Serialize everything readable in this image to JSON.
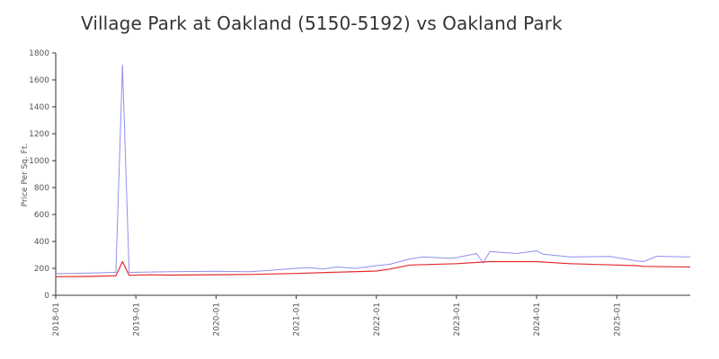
{
  "chart_data": {
    "type": "line",
    "title": "Village Park at Oakland (5150-5192) vs Oakland Park",
    "xlabel": "",
    "ylabel": "Price Per Sq. Ft.",
    "ylim": [
      0,
      1800
    ],
    "xlim": [
      "2018-01",
      "2025-12"
    ],
    "y_ticks": [
      "0",
      "200",
      "400",
      "600",
      "800",
      "1000",
      "1200",
      "1400",
      "1600",
      "1800"
    ],
    "x_ticks": [
      "2018-01",
      "2019-01",
      "2020-01",
      "2021-01",
      "2022-01",
      "2023-01",
      "2024-01",
      "2025-01"
    ],
    "grid": false,
    "legend": "none",
    "colors": {
      "blue_series": "#8f90ee",
      "red_series": "#e32b2b",
      "axis": "#333333"
    },
    "series": [
      {
        "color": "#8f90ee",
        "x": [
          "2018-01",
          "2018-06",
          "2018-10",
          "2018-11",
          "2018-12",
          "2019-06",
          "2020-01",
          "2020-06",
          "2020-09",
          "2021-01",
          "2021-03",
          "2021-05",
          "2021-07",
          "2021-10",
          "2022-01",
          "2022-03",
          "2022-06",
          "2022-08",
          "2022-12",
          "2023-01",
          "2023-04",
          "2023-05",
          "2023-06",
          "2023-10",
          "2024-01",
          "2024-02",
          "2024-06",
          "2024-12",
          "2025-01",
          "2025-04",
          "2025-05",
          "2025-07",
          "2025-12"
        ],
        "values": [
          160,
          165,
          170,
          1710,
          170,
          175,
          178,
          175,
          185,
          200,
          205,
          195,
          210,
          200,
          220,
          230,
          270,
          285,
          275,
          280,
          310,
          240,
          325,
          310,
          330,
          305,
          285,
          288,
          280,
          255,
          250,
          290,
          285
        ]
      },
      {
        "color": "#e32b2b",
        "x": [
          "2018-01",
          "2018-06",
          "2018-10",
          "2018-11",
          "2018-12",
          "2019-03",
          "2019-06",
          "2020-01",
          "2020-06",
          "2021-01",
          "2021-06",
          "2022-01",
          "2022-03",
          "2022-06",
          "2023-01",
          "2023-06",
          "2024-01",
          "2024-06",
          "2025-01",
          "2025-04",
          "2025-05",
          "2025-12"
        ],
        "values": [
          138,
          140,
          145,
          250,
          148,
          152,
          150,
          153,
          155,
          162,
          170,
          180,
          195,
          225,
          235,
          250,
          250,
          235,
          225,
          220,
          215,
          210
        ]
      }
    ]
  }
}
